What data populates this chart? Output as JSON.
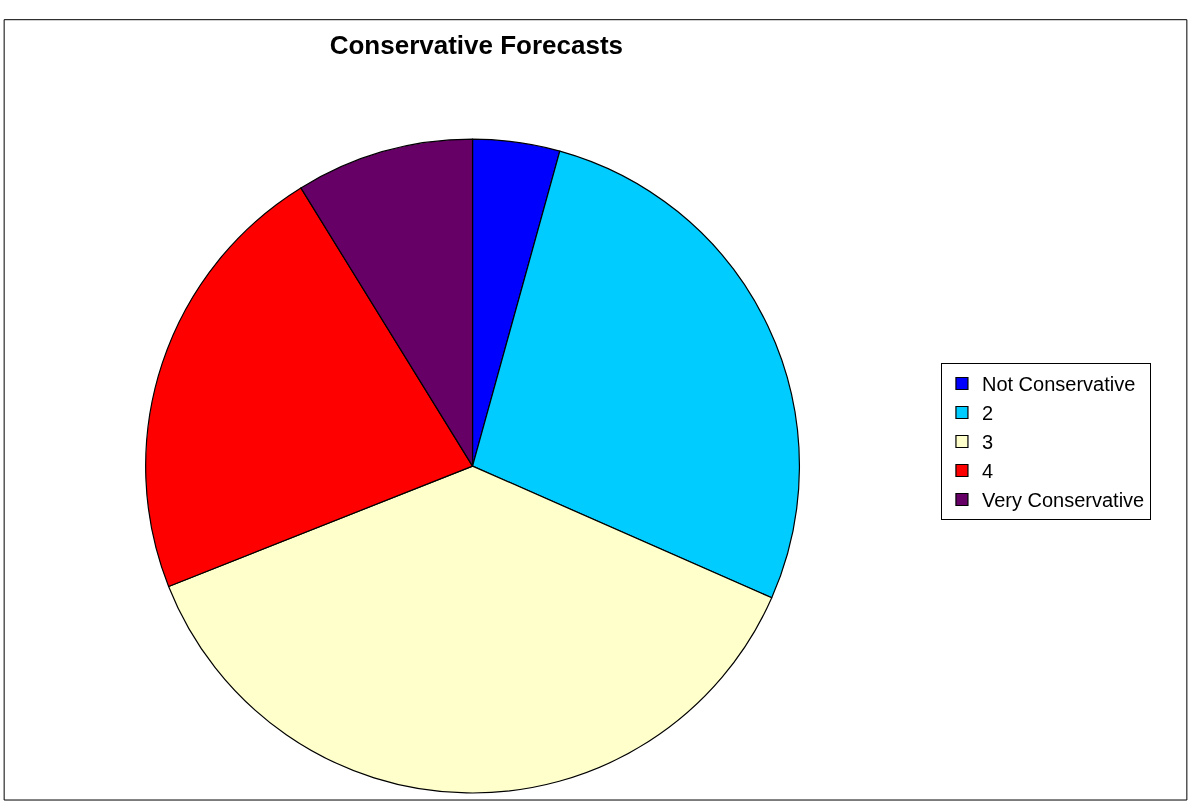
{
  "chart_data": {
    "type": "pie",
    "title": "Conservative Forecasts",
    "categories": [
      "Not Conservative",
      "2",
      "3",
      "4",
      "Very Conservative"
    ],
    "values": [
      4.3,
      27.3,
      37.4,
      22.2,
      8.8
    ],
    "colors": [
      "#0000ff",
      "#00ccff",
      "#ffffcc",
      "#ff0000",
      "#660066"
    ],
    "legend": "right"
  }
}
